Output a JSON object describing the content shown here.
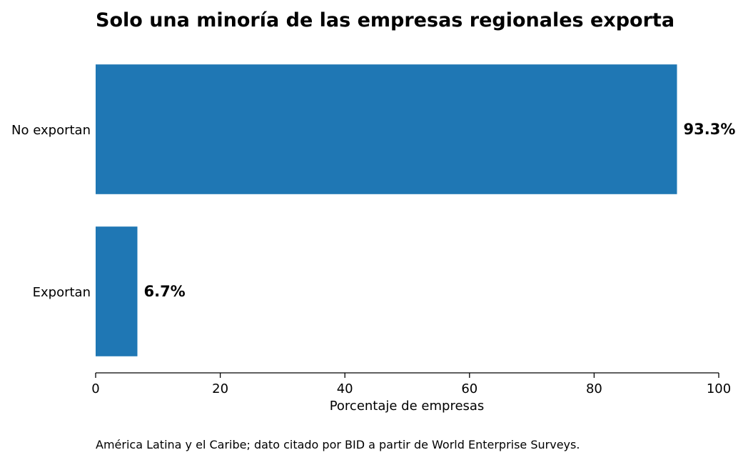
{
  "chart_data": {
    "type": "bar",
    "orientation": "horizontal",
    "title": "Solo una minoría de las empresas regionales exporta",
    "categories": [
      "No exportan",
      "Exportan"
    ],
    "values": [
      93.3,
      6.7
    ],
    "value_labels": [
      "93.3%",
      "6.7%"
    ],
    "xlabel": "Porcentaje de empresas",
    "ylabel": "",
    "xlim": [
      0,
      100
    ],
    "xticks": [
      0,
      20,
      40,
      60,
      80,
      100
    ],
    "xtick_labels": [
      "0",
      "20",
      "40",
      "60",
      "80",
      "100"
    ],
    "grid": false,
    "bar_color": "#1f77b4"
  },
  "note": "América Latina y el Caribe; dato citado por BID a partir de World Enterprise Surveys."
}
